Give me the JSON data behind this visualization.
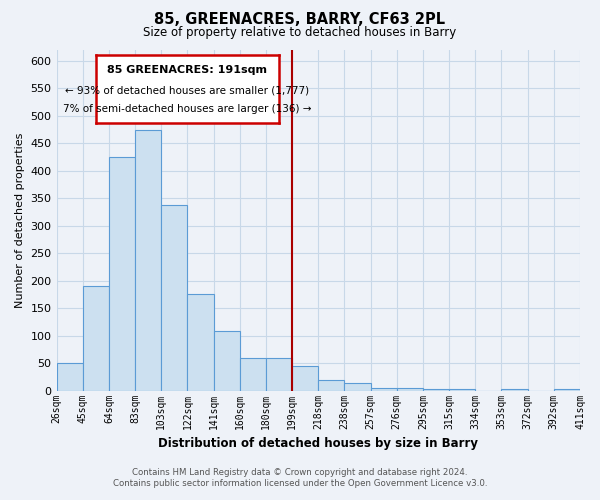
{
  "title": "85, GREENACRES, BARRY, CF63 2PL",
  "subtitle": "Size of property relative to detached houses in Barry",
  "xlabel": "Distribution of detached houses by size in Barry",
  "ylabel": "Number of detached properties",
  "bar_labels": [
    "26sqm",
    "45sqm",
    "64sqm",
    "83sqm",
    "103sqm",
    "122sqm",
    "141sqm",
    "160sqm",
    "180sqm",
    "199sqm",
    "218sqm",
    "238sqm",
    "257sqm",
    "276sqm",
    "295sqm",
    "315sqm",
    "334sqm",
    "353sqm",
    "372sqm",
    "392sqm",
    "411sqm"
  ],
  "bar_values": [
    50,
    190,
    425,
    475,
    337,
    175,
    108,
    60,
    60,
    45,
    20,
    13,
    5,
    5,
    3,
    3,
    0,
    3,
    0,
    3
  ],
  "bar_color": "#cce0f0",
  "bar_edge_color": "#5b9bd5",
  "grid_color": "#c8d8e8",
  "vline_color": "#aa0000",
  "annotation_title": "85 GREENACRES: 191sqm",
  "annotation_line1": "← 93% of detached houses are smaller (1,777)",
  "annotation_line2": "7% of semi-detached houses are larger (136) →",
  "annotation_box_color": "#ffffff",
  "annotation_box_edge": "#cc0000",
  "ylim": [
    0,
    620
  ],
  "yticks": [
    0,
    50,
    100,
    150,
    200,
    250,
    300,
    350,
    400,
    450,
    500,
    550,
    600
  ],
  "footer_line1": "Contains HM Land Registry data © Crown copyright and database right 2024.",
  "footer_line2": "Contains public sector information licensed under the Open Government Licence v3.0.",
  "background_color": "#eef2f8"
}
